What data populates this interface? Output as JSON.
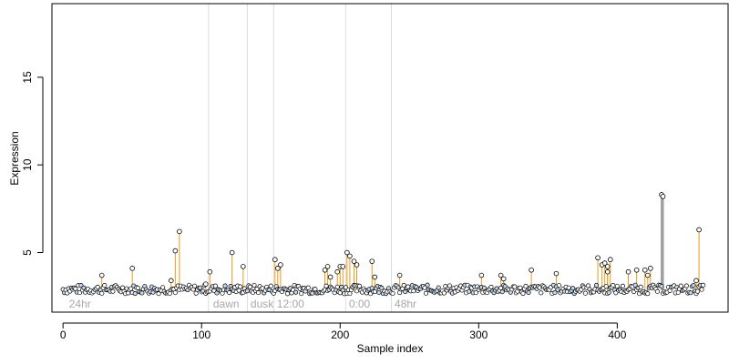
{
  "chart_data": {
    "type": "scatter",
    "title": "",
    "xlabel": "Sample index",
    "ylabel": "Expression",
    "xlim": [
      -8,
      480
    ],
    "ylim": [
      1.6,
      19.2
    ],
    "xticks": [
      0,
      100,
      200,
      300,
      400
    ],
    "yticks": [
      5,
      10,
      15
    ],
    "baseline": 2.85,
    "region_boundaries": [
      105,
      133,
      152,
      204,
      237
    ],
    "region_labels": [
      {
        "text": "24hr",
        "x": 3
      },
      {
        "text": "dawn",
        "x": 107
      },
      {
        "text": "dusk",
        "x": 134
      },
      {
        "text": "12:00",
        "x": 153
      },
      {
        "text": "0:00",
        "x": 205
      },
      {
        "text": "48hr",
        "x": 238
      }
    ],
    "highlight_points": [
      {
        "x": 28,
        "y": 3.7
      },
      {
        "x": 50,
        "y": 4.1
      },
      {
        "x": 78,
        "y": 3.4
      },
      {
        "x": 81,
        "y": 5.1
      },
      {
        "x": 84,
        "y": 6.2
      },
      {
        "x": 103,
        "y": 3.2
      },
      {
        "x": 106,
        "y": 3.9
      },
      {
        "x": 122,
        "y": 5.0
      },
      {
        "x": 130,
        "y": 4.2
      },
      {
        "x": 153,
        "y": 4.6
      },
      {
        "x": 155,
        "y": 4.1
      },
      {
        "x": 157,
        "y": 4.3
      },
      {
        "x": 189,
        "y": 4.0
      },
      {
        "x": 191,
        "y": 4.2
      },
      {
        "x": 193,
        "y": 3.6
      },
      {
        "x": 198,
        "y": 3.9
      },
      {
        "x": 200,
        "y": 4.2
      },
      {
        "x": 202,
        "y": 4.2
      },
      {
        "x": 205,
        "y": 5.0
      },
      {
        "x": 207,
        "y": 4.8
      },
      {
        "x": 210,
        "y": 4.5
      },
      {
        "x": 212,
        "y": 4.3
      },
      {
        "x": 223,
        "y": 4.5
      },
      {
        "x": 225,
        "y": 3.6
      },
      {
        "x": 243,
        "y": 3.7
      },
      {
        "x": 302,
        "y": 3.7
      },
      {
        "x": 316,
        "y": 3.7
      },
      {
        "x": 318,
        "y": 3.5
      },
      {
        "x": 338,
        "y": 4.0
      },
      {
        "x": 356,
        "y": 3.8
      },
      {
        "x": 386,
        "y": 4.7
      },
      {
        "x": 389,
        "y": 4.3
      },
      {
        "x": 391,
        "y": 4.4
      },
      {
        "x": 393,
        "y": 4.2
      },
      {
        "x": 395,
        "y": 4.6
      },
      {
        "x": 393,
        "y": 3.9
      },
      {
        "x": 408,
        "y": 3.9
      },
      {
        "x": 414,
        "y": 4.0
      },
      {
        "x": 420,
        "y": 4.0
      },
      {
        "x": 422,
        "y": 3.7
      },
      {
        "x": 424,
        "y": 4.1
      },
      {
        "x": 457,
        "y": 3.4
      },
      {
        "x": 459,
        "y": 6.3
      }
    ],
    "gray_points": [
      {
        "x": 432,
        "y": 8.3
      },
      {
        "x": 433,
        "y": 8.2
      }
    ],
    "baseline_points": {
      "x_range": [
        0,
        462
      ],
      "y_center": 2.9,
      "y_spread": 0.25
    }
  }
}
